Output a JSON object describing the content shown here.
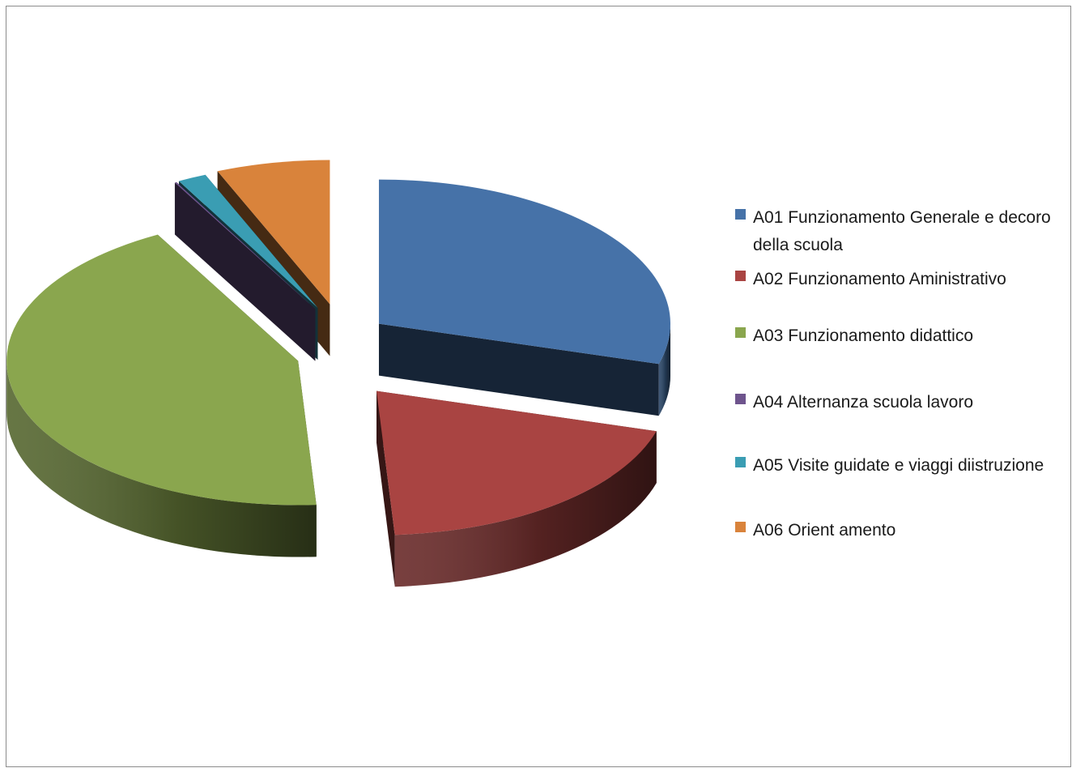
{
  "chart_data": {
    "type": "pie",
    "style": "3d-exploded",
    "title": "",
    "legend_position": "right",
    "slices": [
      {
        "label": "A01  Funzionamento Generale e decoro della scuola",
        "value": 29.5,
        "color": "#4672A8"
      },
      {
        "label": "A02 Funzionamento Aministrativo",
        "value": 19.5,
        "color": "#A94442"
      },
      {
        "label": "A03 Funzionamento didattico",
        "value": 43.0,
        "color": "#8AA64E"
      },
      {
        "label": "A04 Alternanza scuola lavoro",
        "value": 0.1,
        "color": "#6E548D"
      },
      {
        "label": "A05 Visite guidate e viaggi diistruzione",
        "value": 1.6,
        "color": "#3A9DB3"
      },
      {
        "label": "A06 Orient amento",
        "value": 6.3,
        "color": "#D9833B"
      }
    ]
  }
}
